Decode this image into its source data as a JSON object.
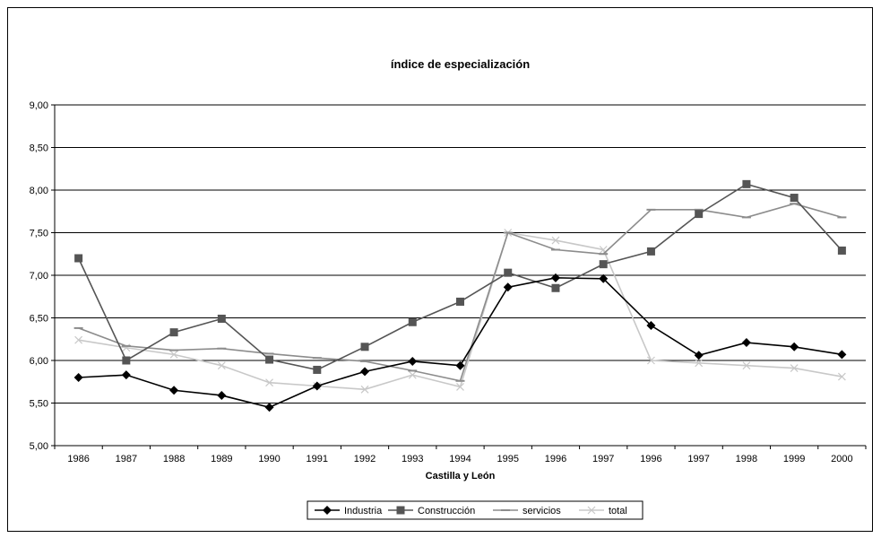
{
  "chart_data": {
    "type": "line",
    "title": "índice de especialización",
    "xlabel": "Castilla y León",
    "ylabel": "",
    "categories": [
      "1986",
      "1987",
      "1988",
      "1989",
      "1990",
      "1991",
      "1992",
      "1993",
      "1994",
      "1995",
      "1996",
      "1997",
      "1996",
      "1997",
      "1998",
      "1999",
      "2000"
    ],
    "ylim": [
      5.0,
      9.0
    ],
    "yticks": [
      "5,00",
      "5,50",
      "6,00",
      "6,50",
      "7,00",
      "7,50",
      "8,00",
      "8,50",
      "9,00"
    ],
    "grid": true,
    "legend_position": "bottom",
    "series": [
      {
        "name": "Industria",
        "color": "#000000",
        "marker": "diamond",
        "values": [
          5.8,
          5.83,
          5.65,
          5.59,
          5.45,
          5.7,
          5.87,
          5.99,
          5.94,
          6.86,
          6.97,
          6.96,
          6.41,
          6.06,
          6.21,
          6.16,
          6.07
        ]
      },
      {
        "name": "Construcción",
        "color": "#555555",
        "marker": "square",
        "values": [
          7.2,
          6.0,
          6.33,
          6.49,
          6.01,
          5.89,
          6.16,
          6.45,
          6.69,
          7.03,
          6.85,
          7.13,
          7.28,
          7.72,
          8.07,
          7.91,
          7.29
        ]
      },
      {
        "name": "servicios",
        "color": "#8c8c8c",
        "marker": "dash",
        "values": [
          6.38,
          6.17,
          6.12,
          6.14,
          6.08,
          6.03,
          5.99,
          5.88,
          5.76,
          7.5,
          7.3,
          7.25,
          7.77,
          7.77,
          7.68,
          7.84,
          7.68
        ]
      },
      {
        "name": "total",
        "color": "#c8c8c8",
        "marker": "x",
        "values": [
          6.24,
          6.15,
          6.07,
          5.94,
          5.74,
          5.7,
          5.66,
          5.83,
          5.69,
          7.5,
          7.41,
          7.3,
          6.0,
          5.97,
          5.94,
          5.91,
          5.81
        ]
      }
    ]
  }
}
